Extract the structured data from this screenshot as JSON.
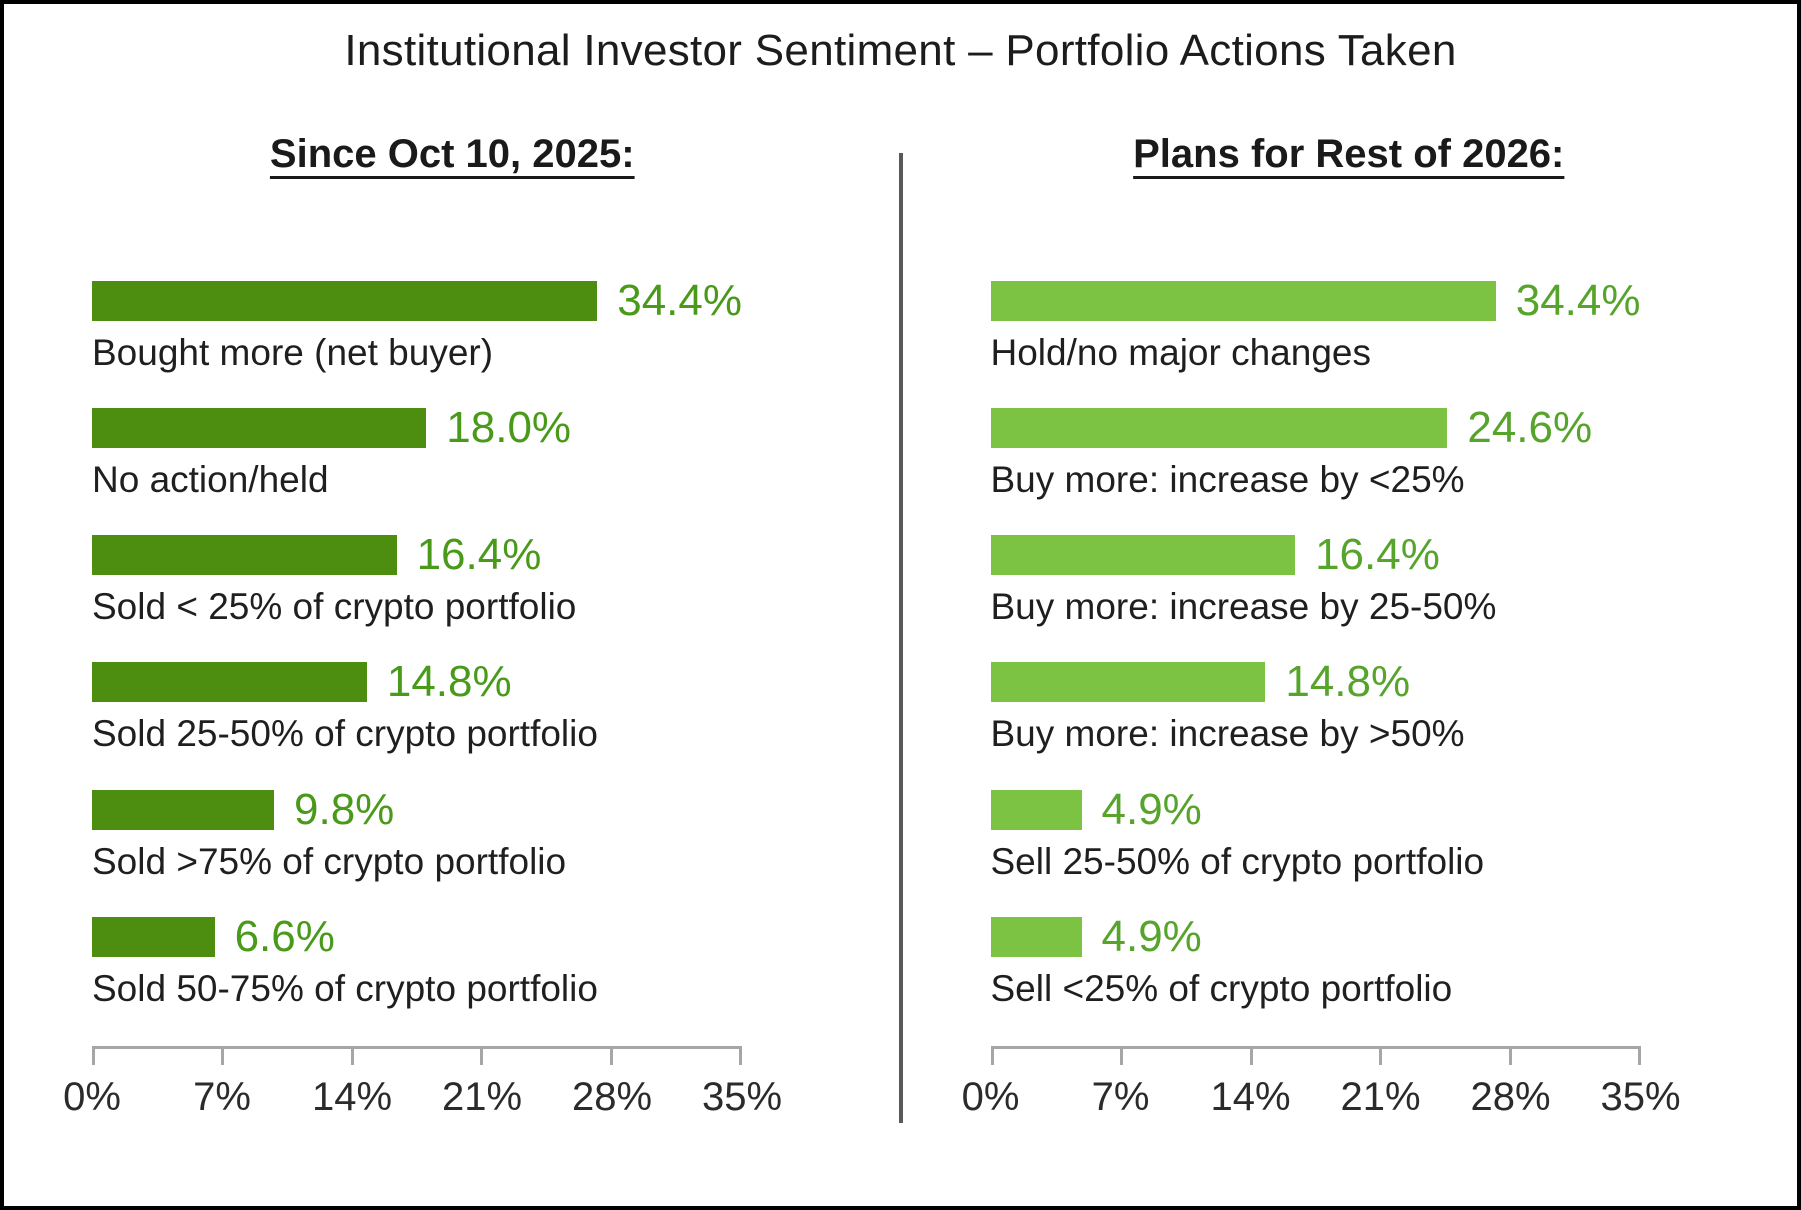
{
  "title": "Institutional Investor Sentiment – Portfolio Actions Taken",
  "colors": {
    "left_bar": "#4d8e10",
    "left_value_text": "#4a9a1a",
    "right_bar": "#7cc344",
    "right_value_text": "#57a42c",
    "divider": "#595959",
    "axis_line": "#a6a6a6",
    "category_text": "#1f1f1f",
    "frame_border": "#000000"
  },
  "chart_data": [
    {
      "type": "bar",
      "orientation": "horizontal",
      "section_title": "Since Oct 10, 2025:",
      "bar_color": "#4d8e10",
      "value_color": "#4a9a1a",
      "categories": [
        "Bought more (net buyer)",
        "No action/held",
        "Sold < 25% of crypto portfolio",
        "Sold 25-50% of crypto portfolio",
        "Sold >75% of crypto portfolio",
        "Sold 50-75% of crypto portfolio"
      ],
      "values": [
        34.4,
        18.0,
        16.4,
        14.8,
        9.8,
        6.6
      ],
      "value_labels": [
        "34.4%",
        "18.0%",
        "16.4%",
        "14.8%",
        "9.8%",
        "6.6%"
      ],
      "xlim": [
        0,
        35
      ],
      "x_ticks": [
        "0%",
        "7%",
        "14%",
        "21%",
        "28%",
        "35%"
      ],
      "grid": false,
      "legend": "none"
    },
    {
      "type": "bar",
      "orientation": "horizontal",
      "section_title": "Plans for Rest of 2026:",
      "bar_color": "#7cc344",
      "value_color": "#57a42c",
      "categories": [
        "Hold/no major changes",
        "Buy more: increase by <25%",
        "Buy more: increase by 25-50%",
        "Buy more: increase by >50%",
        "Sell 25-50% of crypto portfolio",
        "Sell <25% of crypto portfolio"
      ],
      "values": [
        34.4,
        24.6,
        16.4,
        14.8,
        4.9,
        4.9
      ],
      "value_labels": [
        "34.4%",
        "24.6%",
        "16.4%",
        "14.8%",
        "4.9%",
        "4.9%"
      ],
      "xlim": [
        0,
        35
      ],
      "x_ticks": [
        "0%",
        "7%",
        "14%",
        "21%",
        "28%",
        "35%"
      ],
      "grid": false,
      "legend": "none"
    }
  ]
}
